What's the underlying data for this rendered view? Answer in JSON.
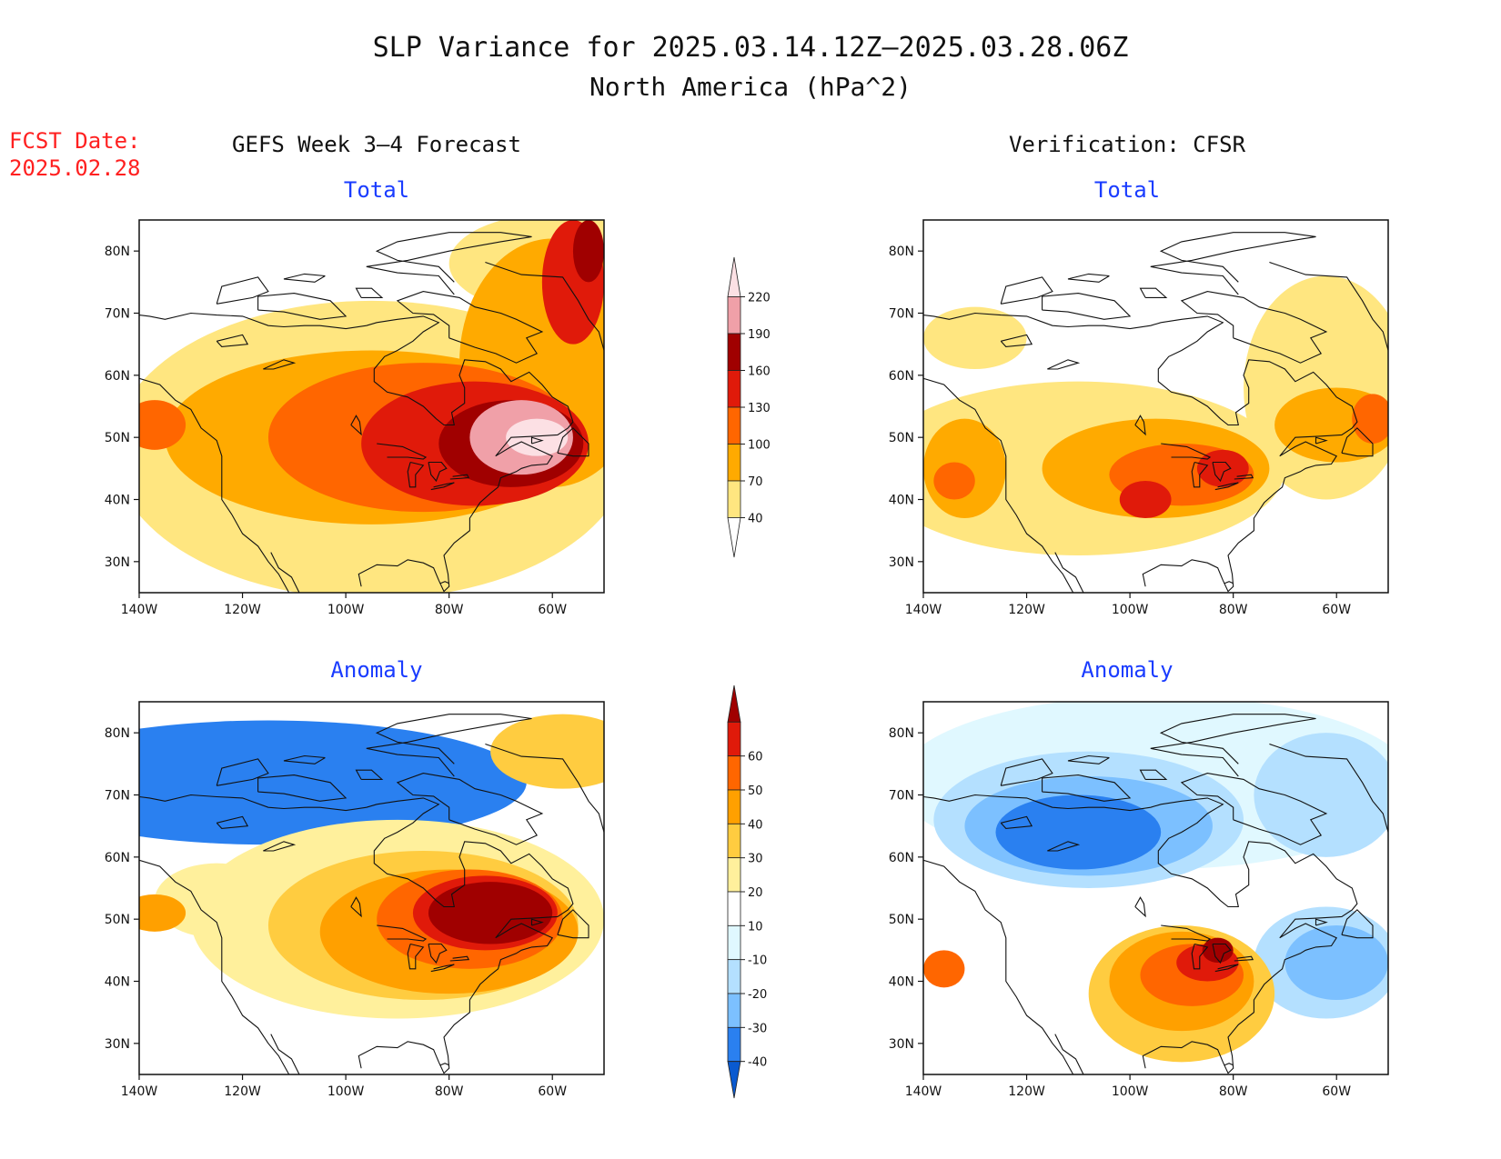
{
  "title": {
    "line1": "SLP Variance for 2025.03.14.12Z–2025.03.28.06Z",
    "line2": "North America (hPa^2)"
  },
  "fcst": {
    "line1": "FCST Date:",
    "line2": "2025.02.28"
  },
  "columns": {
    "left": "GEFS Week 3–4 Forecast",
    "right": "Verification: CFSR"
  },
  "subtitles": {
    "total": "Total",
    "anomaly": "Anomaly"
  },
  "colors": {
    "title_red": "#ff2020",
    "subtitle_blue": "#1a3cff"
  },
  "axes": {
    "lon_ticks": [
      "140W",
      "120W",
      "100W",
      "80W",
      "60W"
    ],
    "lat_ticks": [
      "30N",
      "40N",
      "50N",
      "60N",
      "70N",
      "80N"
    ],
    "lon_range": [
      -140,
      -50
    ],
    "lat_range": [
      25,
      85
    ]
  },
  "colorbars": {
    "total": {
      "labels": [
        "40",
        "70",
        "100",
        "130",
        "160",
        "190",
        "220"
      ],
      "colors": [
        "#ffffff",
        "#ffe680",
        "#ffaa00",
        "#ff6600",
        "#e01a0a",
        "#a00000",
        "#f0a0a8",
        "#fce0e4"
      ]
    },
    "anomaly": {
      "labels": [
        "-40",
        "-30",
        "-20",
        "-10",
        "10",
        "20",
        "30",
        "40",
        "50",
        "60"
      ],
      "colors": [
        "#0a5ad0",
        "#2a80f0",
        "#7cc0ff",
        "#b4e0ff",
        "#e0f8ff",
        "#ffffff",
        "#fff09c",
        "#ffcc40",
        "#ffa000",
        "#ff6600",
        "#e01a0a",
        "#a00000"
      ]
    }
  },
  "chart_data": [
    {
      "type": "heatmap",
      "title": "Total",
      "panel": "GEFS Week 3–4 Forecast",
      "features": [
        {
          "level": 1,
          "lon": -95,
          "lat": 48,
          "rx": 50,
          "ry": 24
        },
        {
          "level": 1,
          "lon": -60,
          "lat": 78,
          "rx": 20,
          "ry": 8
        },
        {
          "level": 2,
          "lon": -95,
          "lat": 50,
          "rx": 40,
          "ry": 14
        },
        {
          "level": 2,
          "lon": -60,
          "lat": 62,
          "rx": 18,
          "ry": 20
        },
        {
          "level": 3,
          "lon": -85,
          "lat": 50,
          "rx": 30,
          "ry": 12
        },
        {
          "level": 3,
          "lon": -137,
          "lat": 52,
          "rx": 6,
          "ry": 4
        },
        {
          "level": 4,
          "lon": -75,
          "lat": 49,
          "rx": 22,
          "ry": 10
        },
        {
          "level": 4,
          "lon": -56,
          "lat": 75,
          "rx": 6,
          "ry": 10
        },
        {
          "level": 5,
          "lon": -68,
          "lat": 49,
          "rx": 14,
          "ry": 7
        },
        {
          "level": 5,
          "lon": -53,
          "lat": 80,
          "rx": 3,
          "ry": 5
        },
        {
          "level": 6,
          "lon": -66,
          "lat": 50,
          "rx": 10,
          "ry": 6
        },
        {
          "level": 7,
          "lon": -63,
          "lat": 50,
          "rx": 6,
          "ry": 3
        }
      ]
    },
    {
      "type": "heatmap",
      "title": "Total",
      "panel": "Verification: CFSR",
      "features": [
        {
          "level": 1,
          "lon": -110,
          "lat": 45,
          "rx": 40,
          "ry": 14
        },
        {
          "level": 1,
          "lon": -62,
          "lat": 58,
          "rx": 16,
          "ry": 18
        },
        {
          "level": 1,
          "lon": -130,
          "lat": 66,
          "rx": 10,
          "ry": 5
        },
        {
          "level": 2,
          "lon": -95,
          "lat": 45,
          "rx": 22,
          "ry": 8
        },
        {
          "level": 2,
          "lon": -132,
          "lat": 45,
          "rx": 8,
          "ry": 8
        },
        {
          "level": 2,
          "lon": -60,
          "lat": 52,
          "rx": 12,
          "ry": 6
        },
        {
          "level": 3,
          "lon": -90,
          "lat": 44,
          "rx": 14,
          "ry": 5
        },
        {
          "level": 3,
          "lon": -134,
          "lat": 43,
          "rx": 4,
          "ry": 3
        },
        {
          "level": 3,
          "lon": -53,
          "lat": 53,
          "rx": 4,
          "ry": 4
        },
        {
          "level": 4,
          "lon": -82,
          "lat": 45,
          "rx": 5,
          "ry": 3
        },
        {
          "level": 4,
          "lon": -97,
          "lat": 40,
          "rx": 5,
          "ry": 3
        }
      ]
    },
    {
      "type": "heatmap",
      "title": "Anomaly",
      "panel": "GEFS Week 3–4 Forecast",
      "features": [
        {
          "level": 1,
          "lon": -115,
          "lat": 72,
          "rx": 50,
          "ry": 10
        },
        {
          "level": 6,
          "lon": -90,
          "lat": 50,
          "rx": 40,
          "ry": 16
        },
        {
          "level": 6,
          "lon": -125,
          "lat": 53,
          "rx": 12,
          "ry": 6
        },
        {
          "level": 7,
          "lon": -85,
          "lat": 49,
          "rx": 30,
          "ry": 12
        },
        {
          "level": 7,
          "lon": -58,
          "lat": 77,
          "rx": 14,
          "ry": 6
        },
        {
          "level": 8,
          "lon": -80,
          "lat": 48,
          "rx": 25,
          "ry": 10
        },
        {
          "level": 8,
          "lon": -137,
          "lat": 51,
          "rx": 6,
          "ry": 3
        },
        {
          "level": 9,
          "lon": -76,
          "lat": 50,
          "rx": 18,
          "ry": 8
        },
        {
          "level": 10,
          "lon": -73,
          "lat": 51,
          "rx": 14,
          "ry": 6
        },
        {
          "level": 11,
          "lon": -72,
          "lat": 51,
          "rx": 12,
          "ry": 5
        }
      ]
    },
    {
      "type": "heatmap",
      "title": "Anomaly",
      "panel": "Verification: CFSR",
      "features": [
        {
          "level": 4,
          "lon": -95,
          "lat": 72,
          "rx": 50,
          "ry": 14
        },
        {
          "level": 3,
          "lon": -108,
          "lat": 66,
          "rx": 30,
          "ry": 11
        },
        {
          "level": 3,
          "lon": -62,
          "lat": 70,
          "rx": 14,
          "ry": 10
        },
        {
          "level": 3,
          "lon": -62,
          "lat": 43,
          "rx": 14,
          "ry": 9
        },
        {
          "level": 2,
          "lon": -108,
          "lat": 65,
          "rx": 24,
          "ry": 8
        },
        {
          "level": 2,
          "lon": -60,
          "lat": 43,
          "rx": 10,
          "ry": 6
        },
        {
          "level": 1,
          "lon": -110,
          "lat": 64,
          "rx": 16,
          "ry": 6
        },
        {
          "level": 7,
          "lon": -90,
          "lat": 38,
          "rx": 18,
          "ry": 11
        },
        {
          "level": 8,
          "lon": -90,
          "lat": 40,
          "rx": 14,
          "ry": 8
        },
        {
          "level": 9,
          "lon": -88,
          "lat": 41,
          "rx": 10,
          "ry": 5
        },
        {
          "level": 10,
          "lon": -85,
          "lat": 43,
          "rx": 6,
          "ry": 3
        },
        {
          "level": 11,
          "lon": -83,
          "lat": 45,
          "rx": 3,
          "ry": 2
        },
        {
          "level": 9,
          "lon": -136,
          "lat": 42,
          "rx": 4,
          "ry": 3
        }
      ]
    }
  ],
  "coastlines": [
    [
      [
        -140,
        59.5
      ],
      [
        -136,
        58.5
      ],
      [
        -133,
        56
      ],
      [
        -130,
        54.5
      ],
      [
        -128,
        51.5
      ],
      [
        -125,
        49.5
      ],
      [
        -124,
        47
      ],
      [
        -124,
        43
      ],
      [
        -124,
        40
      ],
      [
        -122,
        37.5
      ],
      [
        -120,
        34.5
      ],
      [
        -117,
        32.5
      ],
      [
        -115,
        30
      ],
      [
        -113,
        28
      ],
      [
        -111,
        25
      ],
      [
        -109,
        23
      ]
    ],
    [
      [
        -114.5,
        31.5
      ],
      [
        -113,
        29
      ],
      [
        -110.5,
        27.5
      ],
      [
        -109,
        25
      ]
    ],
    [
      [
        -97,
        26
      ],
      [
        -97.5,
        28
      ],
      [
        -94,
        29.5
      ],
      [
        -90,
        29.3
      ],
      [
        -88,
        30.3
      ],
      [
        -85,
        29.8
      ],
      [
        -83,
        29
      ],
      [
        -82,
        27
      ],
      [
        -81,
        25.2
      ],
      [
        -80,
        26
      ],
      [
        -80.2,
        28
      ],
      [
        -81,
        31
      ],
      [
        -79,
        33
      ],
      [
        -76,
        35
      ],
      [
        -76,
        37
      ],
      [
        -74,
        39.5
      ],
      [
        -72,
        41
      ],
      [
        -70.5,
        42
      ],
      [
        -70,
        43.5
      ],
      [
        -67,
        44.5
      ],
      [
        -66,
        45
      ],
      [
        -64,
        45.5
      ],
      [
        -61,
        45.7
      ],
      [
        -60,
        47
      ],
      [
        -64,
        48.5
      ],
      [
        -66,
        49.3
      ],
      [
        -68,
        48.5
      ],
      [
        -71,
        47
      ],
      [
        -68,
        50
      ],
      [
        -63,
        50.2
      ],
      [
        -59,
        50.4
      ],
      [
        -57,
        51.5
      ],
      [
        -56,
        52.5
      ],
      [
        -57,
        55
      ],
      [
        -60,
        56.5
      ],
      [
        -62,
        58.5
      ],
      [
        -64.5,
        60.5
      ],
      [
        -68,
        59
      ],
      [
        -70,
        61
      ],
      [
        -73,
        62.2
      ],
      [
        -77,
        62.5
      ],
      [
        -78,
        60
      ],
      [
        -77,
        58
      ],
      [
        -77,
        55.5
      ],
      [
        -79.5,
        54
      ],
      [
        -79,
        52
      ],
      [
        -81,
        52
      ],
      [
        -82.5,
        53
      ],
      [
        -85,
        55
      ],
      [
        -88,
        56.5
      ],
      [
        -92,
        57.3
      ],
      [
        -94.5,
        59
      ],
      [
        -94.5,
        61
      ],
      [
        -92.5,
        63
      ],
      [
        -90,
        64
      ],
      [
        -87,
        65.5
      ],
      [
        -85,
        67
      ],
      [
        -82,
        68.5
      ],
      [
        -85,
        69.5
      ],
      [
        -90,
        69
      ],
      [
        -94,
        68.5
      ],
      [
        -96,
        68
      ],
      [
        -100,
        67.5
      ],
      [
        -105,
        68
      ],
      [
        -108,
        68
      ],
      [
        -112,
        67.8
      ],
      [
        -115,
        68
      ],
      [
        -120,
        69.5
      ],
      [
        -125,
        69.7
      ],
      [
        -130,
        70
      ],
      [
        -135,
        69
      ],
      [
        -138,
        69.5
      ],
      [
        -140,
        69.7
      ]
    ],
    [
      [
        -59,
        47.5
      ],
      [
        -56,
        47
      ],
      [
        -53,
        47
      ],
      [
        -53,
        49
      ],
      [
        -56,
        51.5
      ],
      [
        -58,
        50
      ],
      [
        -59,
        47.5
      ]
    ],
    [
      [
        -64,
        49
      ],
      [
        -62,
        49.5
      ],
      [
        -64,
        50
      ],
      [
        -64,
        49
      ]
    ],
    [
      [
        -80,
        66
      ],
      [
        -75,
        64.5
      ],
      [
        -71,
        63.5
      ],
      [
        -67,
        62
      ],
      [
        -63,
        63.5
      ],
      [
        -65,
        66
      ],
      [
        -62,
        67
      ],
      [
        -67,
        69
      ],
      [
        -70,
        70
      ],
      [
        -75,
        71
      ],
      [
        -78,
        72.5
      ],
      [
        -85,
        73.5
      ],
      [
        -90,
        72
      ],
      [
        -87,
        70
      ],
      [
        -83,
        69.8
      ],
      [
        -80,
        68
      ],
      [
        -80,
        66
      ]
    ],
    [
      [
        -79,
        73
      ],
      [
        -82,
        76
      ],
      [
        -90,
        76.5
      ],
      [
        -96,
        77.5
      ],
      [
        -88,
        78.5
      ],
      [
        -80,
        80
      ],
      [
        -70,
        81.5
      ],
      [
        -64,
        82.3
      ],
      [
        -70,
        83
      ],
      [
        -80,
        83
      ],
      [
        -90,
        81.5
      ],
      [
        -94,
        80
      ],
      [
        -90,
        78.5
      ],
      [
        -82,
        77.5
      ],
      [
        -79,
        75
      ]
    ],
    [
      [
        -125,
        71.5
      ],
      [
        -118,
        72.5
      ],
      [
        -115,
        73.5
      ],
      [
        -117,
        75.8
      ],
      [
        -124,
        74.3
      ],
      [
        -125,
        71.5
      ]
    ],
    [
      [
        -117,
        70.5
      ],
      [
        -112,
        70.2
      ],
      [
        -105,
        69
      ],
      [
        -100,
        69.5
      ],
      [
        -103,
        72
      ],
      [
        -110,
        73.2
      ],
      [
        -117,
        72.7
      ],
      [
        -117,
        70.5
      ]
    ],
    [
      [
        -104,
        76
      ],
      [
        -108,
        76.3
      ],
      [
        -112,
        75.5
      ],
      [
        -106,
        75
      ],
      [
        -104,
        76
      ]
    ],
    [
      [
        -97,
        72.5
      ],
      [
        -98,
        74
      ],
      [
        -95,
        74
      ],
      [
        -93,
        72.5
      ],
      [
        -97,
        72.5
      ]
    ],
    [
      [
        -73,
        78.2
      ],
      [
        -66,
        76.2
      ],
      [
        -58,
        75.8
      ],
      [
        -55,
        72
      ],
      [
        -53,
        69
      ],
      [
        -51,
        67
      ],
      [
        -50,
        64
      ]
    ],
    [
      [
        -94,
        49
      ],
      [
        -89,
        48.5
      ],
      [
        -84.5,
        46.8
      ],
      [
        -85,
        46.5
      ],
      [
        -88,
        46.8
      ],
      [
        -92,
        46.8
      ]
    ],
    [
      [
        -87.5,
        46
      ],
      [
        -88,
        44.5
      ],
      [
        -87.6,
        42
      ],
      [
        -86.5,
        42
      ],
      [
        -86.5,
        44
      ],
      [
        -85,
        45.5
      ],
      [
        -87.5,
        46
      ]
    ],
    [
      [
        -84,
        46
      ],
      [
        -83.5,
        44
      ],
      [
        -82.5,
        43
      ],
      [
        -81.8,
        44.5
      ],
      [
        -80.5,
        45
      ],
      [
        -81.5,
        46
      ],
      [
        -84,
        46
      ]
    ],
    [
      [
        -83.5,
        41.6
      ],
      [
        -81,
        42
      ],
      [
        -79,
        42.7
      ],
      [
        -80.5,
        42.5
      ],
      [
        -83,
        42
      ]
    ],
    [
      [
        -79.8,
        43.3
      ],
      [
        -76.2,
        43.5
      ],
      [
        -76.5,
        44
      ],
      [
        -79.3,
        43.7
      ]
    ],
    [
      [
        -99,
        52
      ],
      [
        -97,
        50.5
      ],
      [
        -97.3,
        52.5
      ],
      [
        -98,
        53.5
      ],
      [
        -99,
        52
      ]
    ],
    [
      [
        -116,
        61
      ],
      [
        -112,
        62.5
      ],
      [
        -110,
        62
      ],
      [
        -114,
        61
      ],
      [
        -116,
        61
      ]
    ],
    [
      [
        -125,
        65.5
      ],
      [
        -120,
        66.5
      ],
      [
        -119,
        65
      ],
      [
        -124,
        64.6
      ],
      [
        -125,
        65.5
      ]
    ],
    [
      [
        -80,
        26.5
      ],
      [
        -80.8,
        26.8
      ],
      [
        -81.7,
        26.5
      ]
    ]
  ]
}
